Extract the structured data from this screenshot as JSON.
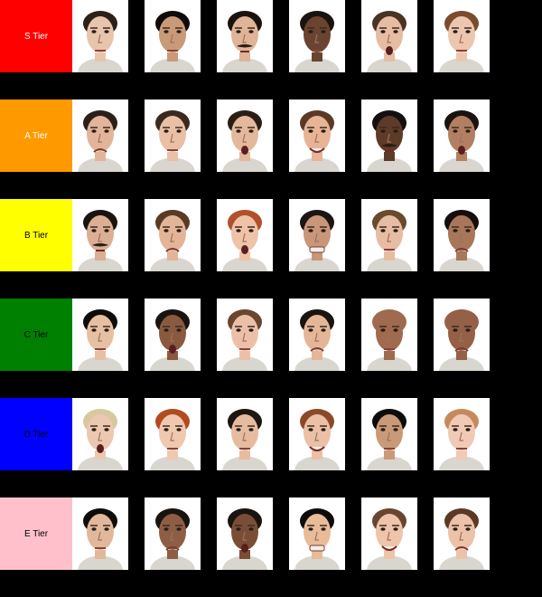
{
  "tiers": [
    {
      "label": "S Tier",
      "color": "#ff0000",
      "text_color": "#ffffff",
      "faces": [
        {
          "skin": "#e9c4ac",
          "hair": "#2b2119",
          "mouth": "neutral"
        },
        {
          "skin": "#c99a78",
          "hair": "#0e0b09",
          "mouth": "neutral"
        },
        {
          "skin": "#e0b497",
          "hair": "#1a120d",
          "mouth": "mustache"
        },
        {
          "skin": "#6a4430",
          "hair": "#1a1410",
          "mouth": "neutral"
        },
        {
          "skin": "#e6bca2",
          "hair": "#4a3322",
          "mouth": "open"
        },
        {
          "skin": "#ecc6ae",
          "hair": "#7a4b2c",
          "mouth": "neutral"
        }
      ]
    },
    {
      "label": "A Tier",
      "color": "#ff9900",
      "text_color": "#ffffff",
      "faces": [
        {
          "skin": "#e2b49a",
          "hair": "#2a2018",
          "mouth": "frown"
        },
        {
          "skin": "#e9c0a6",
          "hair": "#3a2a1e",
          "mouth": "neutral"
        },
        {
          "skin": "#e4b89c",
          "hair": "#2a1d14",
          "mouth": "open"
        },
        {
          "skin": "#e8b496",
          "hair": "#5a3a26",
          "mouth": "smile"
        },
        {
          "skin": "#5e3a28",
          "hair": "#141010",
          "mouth": "mustache"
        },
        {
          "skin": "#b27f62",
          "hair": "#1a1410",
          "mouth": "open"
        }
      ]
    },
    {
      "label": "B Tier",
      "color": "#ffff00",
      "text_color": "#000000",
      "faces": [
        {
          "skin": "#dcae94",
          "hair": "#1a130e",
          "mouth": "mustache"
        },
        {
          "skin": "#e4b498",
          "hair": "#5a3a24",
          "mouth": "frown"
        },
        {
          "skin": "#efc3a8",
          "hair": "#b2502a",
          "mouth": "open"
        },
        {
          "skin": "#c9967a",
          "hair": "#1c1612",
          "mouth": "grimace"
        },
        {
          "skin": "#e6bca2",
          "hair": "#6a4a2c",
          "mouth": "neutral"
        },
        {
          "skin": "#a8765a",
          "hair": "#140f0c",
          "mouth": "frown"
        }
      ]
    },
    {
      "label": "C Tier",
      "color": "#008000",
      "text_color": "#000000",
      "faces": [
        {
          "skin": "#e6c0a2",
          "hair": "#0f0c0a",
          "mouth": "neutral"
        },
        {
          "skin": "#8a5a40",
          "hair": "#1a1410",
          "mouth": "open"
        },
        {
          "skin": "#ecc0a8",
          "hair": "#6a4630",
          "mouth": "neutral"
        },
        {
          "skin": "#e4b698",
          "hair": "#1a130e",
          "mouth": "frown"
        },
        {
          "skin": "#a06a4e",
          "hair": "#a06a4e",
          "mouth": "neutral"
        },
        {
          "skin": "#946048",
          "hair": "#946048",
          "mouth": "frown"
        }
      ]
    },
    {
      "label": "D Tier",
      "color": "#0000ff",
      "text_color": "#000000",
      "faces": [
        {
          "skin": "#ecc8b0",
          "hair": "#d8c8a0",
          "mouth": "open"
        },
        {
          "skin": "#f0c8b0",
          "hair": "#b24a22",
          "mouth": "neutral"
        },
        {
          "skin": "#e6bca0",
          "hair": "#1e1610",
          "mouth": "neutral"
        },
        {
          "skin": "#ecc0a6",
          "hair": "#8a4a2a",
          "mouth": "smile"
        },
        {
          "skin": "#c99a78",
          "hair": "#0e0b09",
          "mouth": "neutral"
        },
        {
          "skin": "#f0cab4",
          "hair": "#c48a5e",
          "mouth": "neutral"
        }
      ]
    },
    {
      "label": "E Tier",
      "color": "#ffc0cb",
      "text_color": "#000000",
      "faces": [
        {
          "skin": "#e2b89c",
          "hair": "#0f0c0a",
          "mouth": "neutral"
        },
        {
          "skin": "#8e5e44",
          "hair": "#1a1410",
          "mouth": "frown"
        },
        {
          "skin": "#7a4e36",
          "hair": "#1a1410",
          "mouth": "open"
        },
        {
          "skin": "#e8bc98",
          "hair": "#0e0b09",
          "mouth": "grimace"
        },
        {
          "skin": "#eec4aa",
          "hair": "#6a4630",
          "mouth": "smile"
        },
        {
          "skin": "#ecc2a8",
          "hair": "#5a3a26",
          "mouth": "frown"
        }
      ]
    }
  ]
}
